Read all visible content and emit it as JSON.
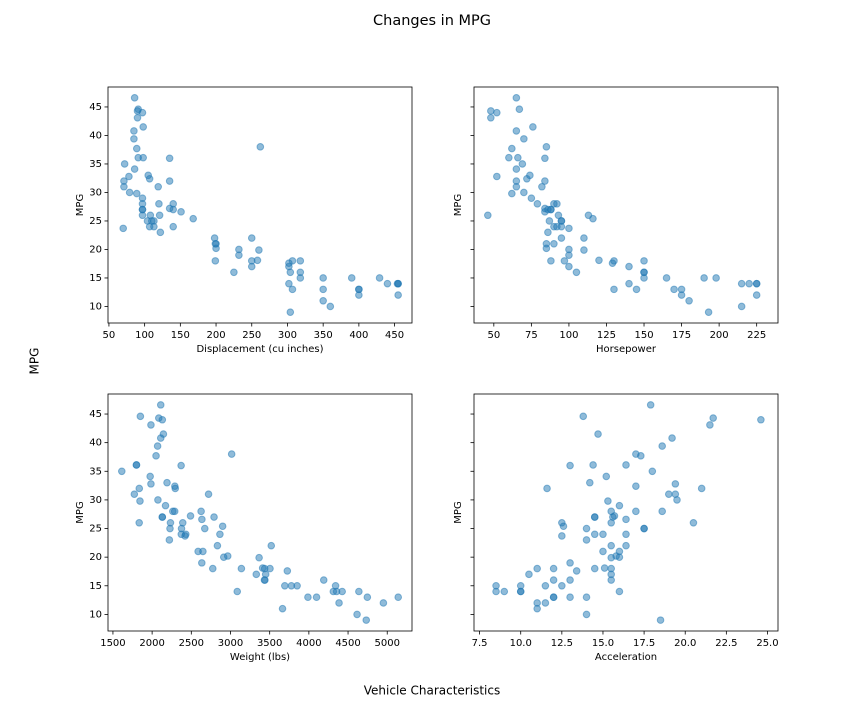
{
  "title": "Changes in MPG",
  "xlabel": "Vehicle Characteristics",
  "ylabel": "MPG",
  "chart_data": [
    {
      "type": "scatter",
      "xlabel": "Displacement (cu inches)",
      "ylabel": "MPG",
      "color": "#1f77b4",
      "xlim": [
        48.7,
        474.4
      ],
      "xticks": [
        50,
        100,
        150,
        200,
        250,
        300,
        350,
        400,
        450
      ],
      "ylim": [
        7.1,
        48.5
      ],
      "yticks": [
        10,
        15,
        20,
        25,
        30,
        35,
        40,
        45
      ],
      "x": [
        307,
        350,
        318,
        304,
        302,
        429,
        454,
        440,
        455,
        390,
        113,
        198,
        199,
        200,
        97,
        97,
        110,
        107,
        104,
        121,
        199,
        360,
        304,
        97,
        140,
        113,
        232,
        225,
        250,
        400,
        400,
        71,
        72,
        97,
        71,
        97,
        108,
        232,
        350,
        250,
        90,
        98,
        78,
        85,
        91,
        260,
        200,
        98,
        86,
        90,
        91,
        85,
        262,
        89,
        86,
        135,
        70,
        151,
        302,
        250,
        140,
        135,
        140,
        97,
        135,
        120,
        119,
        318,
        350,
        307,
        79,
        122,
        318,
        455,
        302,
        107,
        89,
        105,
        258,
        168,
        400,
        455
      ],
      "values": [
        18,
        15,
        18,
        16,
        17,
        15,
        14,
        14,
        14,
        15,
        24,
        22,
        18,
        21,
        27,
        26,
        25,
        24,
        25,
        26,
        21,
        10,
        9,
        27,
        28,
        25,
        19,
        16,
        17,
        13,
        12,
        31,
        35,
        29,
        32,
        28,
        26,
        20,
        13,
        18,
        43.1,
        36.1,
        32.8,
        39.4,
        36.1,
        19.9,
        20.2,
        41.5,
        46.6,
        44.3,
        44.6,
        40.8,
        38,
        37.7,
        34.1,
        27.2,
        23.7,
        26.6,
        17.6,
        22,
        24,
        36,
        27,
        44,
        32,
        28,
        31,
        16,
        11,
        13,
        30,
        23,
        15,
        12,
        14,
        32.4,
        29.8,
        33,
        18.1,
        25.4,
        13,
        14
      ]
    },
    {
      "type": "scatter",
      "xlabel": "Horsepower",
      "ylabel": "MPG",
      "color": "#1f77b4",
      "xlim": [
        36.8,
        239.2
      ],
      "xticks": [
        50,
        75,
        100,
        125,
        150,
        175,
        200,
        225
      ],
      "ylim": [
        7.1,
        48.5
      ],
      "yticks": [
        10,
        15,
        20,
        25,
        30,
        35,
        40,
        45
      ],
      "x": [
        130,
        165,
        150,
        150,
        140,
        198,
        220,
        215,
        225,
        190,
        95,
        95,
        97,
        85,
        88,
        46,
        87,
        90,
        95,
        113,
        90,
        215,
        193,
        88,
        90,
        95,
        100,
        105,
        100,
        170,
        175,
        65,
        69,
        75,
        65,
        92,
        93,
        100,
        145,
        88,
        48,
        66,
        52,
        70,
        60,
        110,
        85,
        76,
        65,
        48,
        67,
        65,
        85,
        62,
        65,
        84,
        100,
        84,
        129,
        110,
        92,
        84,
        86,
        52,
        84,
        79,
        82,
        150,
        180,
        130,
        70,
        86,
        150,
        225,
        140,
        72,
        62,
        74,
        120,
        116,
        175,
        225
      ],
      "values": [
        18,
        15,
        18,
        16,
        17,
        15,
        14,
        14,
        14,
        15,
        24,
        22,
        18,
        21,
        27,
        26,
        25,
        24,
        25,
        26,
        21,
        10,
        9,
        27,
        28,
        25,
        19,
        16,
        17,
        13,
        12,
        31,
        35,
        29,
        32,
        28,
        26,
        20,
        13,
        18,
        43.1,
        36.1,
        32.8,
        39.4,
        36.1,
        19.9,
        20.2,
        41.5,
        46.6,
        44.3,
        44.6,
        40.8,
        38,
        37.7,
        34.1,
        27.2,
        23.7,
        26.6,
        17.6,
        22,
        24,
        36,
        27,
        44,
        32,
        28,
        31,
        16,
        11,
        13,
        30,
        23,
        15,
        12,
        14,
        32.4,
        29.8,
        33,
        18.1,
        25.4,
        13,
        14
      ]
    },
    {
      "type": "scatter",
      "xlabel": "Weight (lbs)",
      "ylabel": "MPG",
      "color": "#1f77b4",
      "xlim": [
        1437,
        5316
      ],
      "xticks": [
        1500,
        2000,
        2500,
        3000,
        3500,
        4000,
        4500,
        5000
      ],
      "ylim": [
        7.1,
        48.5
      ],
      "yticks": [
        10,
        15,
        20,
        25,
        30,
        35,
        40,
        45
      ],
      "x": [
        3504,
        3693,
        3436,
        3433,
        3449,
        4341,
        4354,
        4312,
        4425,
        3850,
        2372,
        2833,
        2774,
        2587,
        2130,
        1835,
        2672,
        2430,
        2375,
        2234,
        2648,
        4615,
        4732,
        2130,
        2264,
        2228,
        2634,
        3439,
        3329,
        4746,
        4385,
        1773,
        1613,
        2171,
        1836,
        2288,
        2391,
        2914,
        3988,
        3139,
        1985,
        1800,
        1985,
        2070,
        1800,
        3365,
        2965,
        2144,
        2110,
        2085,
        1850,
        2110,
        3015,
        2050,
        1975,
        2490,
        2420,
        2635,
        3725,
        3520,
        2865,
        2370,
        2790,
        2130,
        2295,
        2625,
        2720,
        4190,
        3664,
        4098,
        2074,
        2220,
        3777,
        4951,
        4638,
        2290,
        1845,
        2190,
        3410,
        2900,
        5140,
        3086
      ],
      "values": [
        18,
        15,
        18,
        16,
        17,
        15,
        14,
        14,
        14,
        15,
        24,
        22,
        18,
        21,
        27,
        26,
        25,
        24,
        25,
        26,
        21,
        10,
        9,
        27,
        28,
        25,
        19,
        16,
        17,
        13,
        12,
        31,
        35,
        29,
        32,
        28,
        26,
        20,
        13,
        18,
        43.1,
        36.1,
        32.8,
        39.4,
        36.1,
        19.9,
        20.2,
        41.5,
        46.6,
        44.3,
        44.6,
        40.8,
        38,
        37.7,
        34.1,
        27.2,
        23.7,
        26.6,
        17.6,
        22,
        24,
        36,
        27,
        44,
        32,
        28,
        31,
        16,
        11,
        13,
        30,
        23,
        15,
        12,
        14,
        32.4,
        29.8,
        33,
        18.1,
        25.4,
        13,
        14
      ]
    },
    {
      "type": "scatter",
      "xlabel": "Acceleration",
      "ylabel": "MPG",
      "color": "#1f77b4",
      "xlim": [
        7.16,
        25.64
      ],
      "xticks": [
        7.5,
        {
          "value": 10,
          "label": "10.0"
        },
        12.5,
        {
          "value": 15,
          "label": "15.0"
        },
        17.5,
        {
          "value": 20,
          "label": "20.0"
        },
        22.5,
        {
          "value": 25,
          "label": "25.0"
        }
      ],
      "ylim": [
        7.1,
        48.5
      ],
      "yticks": [
        10,
        15,
        20,
        25,
        30,
        35,
        40,
        45
      ],
      "x": [
        12,
        11.5,
        11,
        12,
        10.5,
        10,
        9,
        8.5,
        10,
        8.5,
        15,
        15.5,
        15.5,
        16,
        14.5,
        20.5,
        17.5,
        14.5,
        17.5,
        12.5,
        15,
        14,
        18.5,
        14.5,
        15.5,
        14,
        13,
        15.5,
        15.5,
        12,
        11.5,
        19,
        18,
        16,
        21,
        17,
        15.5,
        16,
        13,
        14.5,
        21.5,
        14.4,
        19.4,
        18.6,
        16.4,
        15.5,
        15.8,
        14.7,
        17.9,
        21.7,
        13.8,
        19.2,
        17,
        17.3,
        15.2,
        15.7,
        12.5,
        16.4,
        13.4,
        16.4,
        16.4,
        13,
        15.6,
        24.6,
        11.6,
        18.6,
        19.4,
        13,
        11,
        14,
        19.5,
        14,
        12.5,
        11,
        16,
        17,
        15.3,
        14.2,
        15.1,
        12.6,
        12,
        10
      ],
      "values": [
        18,
        15,
        18,
        16,
        17,
        15,
        14,
        14,
        14,
        15,
        24,
        22,
        18,
        21,
        27,
        26,
        25,
        24,
        25,
        26,
        21,
        10,
        9,
        27,
        28,
        25,
        19,
        16,
        17,
        13,
        12,
        31,
        35,
        29,
        32,
        28,
        26,
        20,
        13,
        18,
        43.1,
        36.1,
        32.8,
        39.4,
        36.1,
        19.9,
        20.2,
        41.5,
        46.6,
        44.3,
        44.6,
        40.8,
        38,
        37.7,
        34.1,
        27.2,
        23.7,
        26.6,
        17.6,
        22,
        24,
        36,
        27,
        44,
        32,
        28,
        31,
        16,
        11,
        13,
        30,
        23,
        15,
        12,
        14,
        32.4,
        29.8,
        33,
        18.1,
        25.4,
        13,
        14
      ]
    }
  ]
}
